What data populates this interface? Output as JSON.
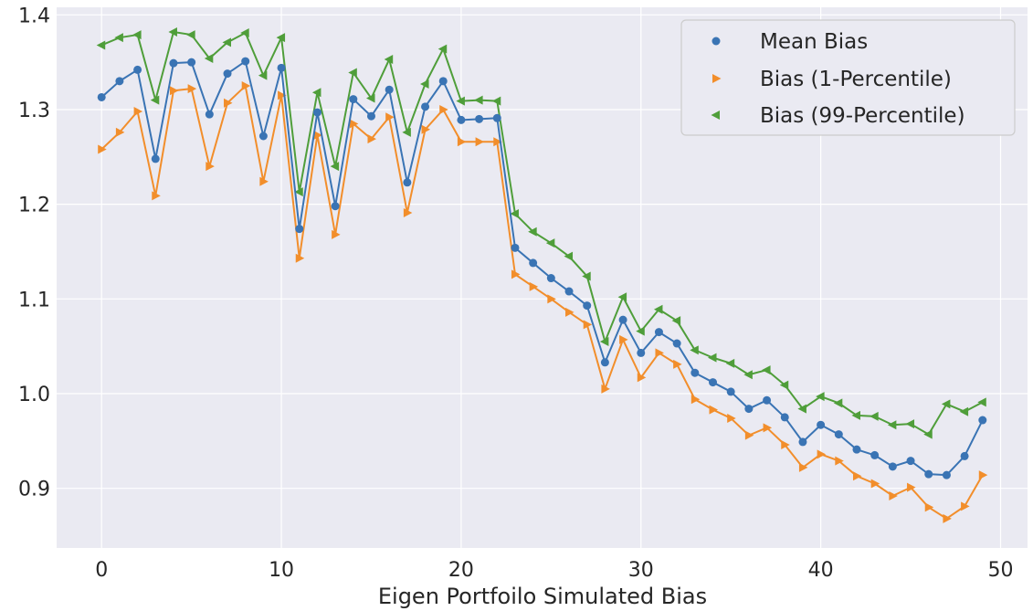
{
  "chart_data": {
    "type": "line",
    "title": "",
    "xlabel": "Eigen Portfoilo Simulated Bias",
    "ylabel": "",
    "xlim": [
      -2.5,
      51.5
    ],
    "ylim": [
      0.837,
      1.408
    ],
    "xticks": [
      0,
      10,
      20,
      30,
      40,
      50
    ],
    "yticks": [
      0.9,
      1.0,
      1.1,
      1.2,
      1.3,
      1.4
    ],
    "ytick_labels": [
      "0.9",
      "1.0",
      "1.1",
      "1.2",
      "1.3",
      "1.4"
    ],
    "grid": true,
    "legend_position": "top-right",
    "x": [
      0,
      1,
      2,
      3,
      4,
      5,
      6,
      7,
      8,
      9,
      10,
      11,
      12,
      13,
      14,
      15,
      16,
      17,
      18,
      19,
      20,
      21,
      22,
      23,
      24,
      25,
      26,
      27,
      28,
      29,
      30,
      31,
      32,
      33,
      34,
      35,
      36,
      37,
      38,
      39,
      40,
      41,
      42,
      43,
      44,
      45,
      46,
      47,
      48,
      49
    ],
    "series": [
      {
        "name": "Mean Bias",
        "color": "#3a74b4",
        "marker": "circle",
        "values": [
          1.313,
          1.33,
          1.342,
          1.248,
          1.349,
          1.35,
          1.295,
          1.338,
          1.351,
          1.272,
          1.344,
          1.174,
          1.297,
          1.198,
          1.311,
          1.293,
          1.321,
          1.223,
          1.303,
          1.33,
          1.289,
          1.29,
          1.291,
          1.154,
          1.138,
          1.122,
          1.108,
          1.093,
          1.033,
          1.078,
          1.043,
          1.065,
          1.053,
          1.022,
          1.012,
          1.002,
          0.984,
          0.993,
          0.975,
          0.949,
          0.967,
          0.957,
          0.941,
          0.935,
          0.923,
          0.929,
          0.915,
          0.914,
          0.934,
          0.972
        ]
      },
      {
        "name": "Bias (1-Percentile)",
        "color": "#f28e2b",
        "marker": "triangle-right",
        "values": [
          1.258,
          1.276,
          1.298,
          1.209,
          1.32,
          1.322,
          1.24,
          1.307,
          1.325,
          1.224,
          1.315,
          1.143,
          1.273,
          1.168,
          1.285,
          1.269,
          1.292,
          1.191,
          1.279,
          1.3,
          1.266,
          1.266,
          1.266,
          1.126,
          1.113,
          1.1,
          1.086,
          1.073,
          1.005,
          1.057,
          1.017,
          1.043,
          1.031,
          0.994,
          0.983,
          0.974,
          0.956,
          0.964,
          0.946,
          0.922,
          0.936,
          0.929,
          0.913,
          0.905,
          0.892,
          0.901,
          0.88,
          0.868,
          0.881,
          0.914
        ]
      },
      {
        "name": "Bias (99-Percentile)",
        "color": "#4f9e3a",
        "marker": "triangle-left",
        "values": [
          1.368,
          1.376,
          1.379,
          1.31,
          1.382,
          1.379,
          1.354,
          1.371,
          1.381,
          1.336,
          1.376,
          1.213,
          1.318,
          1.24,
          1.339,
          1.312,
          1.353,
          1.276,
          1.327,
          1.364,
          1.309,
          1.31,
          1.309,
          1.19,
          1.171,
          1.159,
          1.145,
          1.124,
          1.055,
          1.102,
          1.066,
          1.089,
          1.077,
          1.046,
          1.038,
          1.032,
          1.02,
          1.025,
          1.009,
          0.984,
          0.997,
          0.99,
          0.977,
          0.976,
          0.967,
          0.968,
          0.957,
          0.989,
          0.981,
          0.991
        ]
      }
    ]
  }
}
